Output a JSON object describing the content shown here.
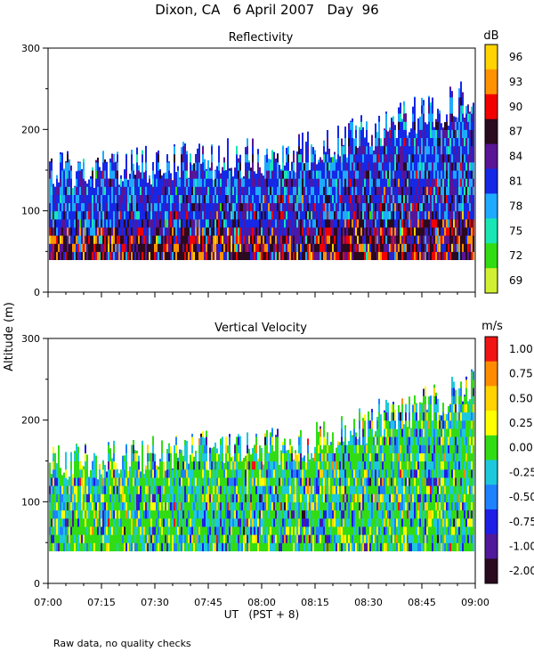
{
  "title": "Dixon, CA   6 April 2007   Day  96",
  "ylabel": "Altitude (m)",
  "xlabel": "UT   (PST + 8)",
  "footnote": "Raw data, no quality checks",
  "chart_data": [
    {
      "type": "heatmap",
      "title": "Reflectivity",
      "colorbar_unit": "dB",
      "colorbar_ticks": [
        "96",
        "93",
        "90",
        "87",
        "84",
        "81",
        "78",
        "75",
        "72",
        "69"
      ],
      "colorbar_colors": [
        "#ffd400",
        "#ff9200",
        "#f20000",
        "#2a0a1e",
        "#5a1496",
        "#1428e6",
        "#1eaaff",
        "#19e6b4",
        "#32dc14",
        "#d2f032"
      ],
      "x_ticks": [
        "07:00",
        "07:15",
        "07:30",
        "07:45",
        "08:00",
        "08:15",
        "08:30",
        "08:45",
        "09:00"
      ],
      "y_ticks": [
        "0",
        "100",
        "200",
        "300"
      ],
      "ylim": [
        0,
        300
      ],
      "xlim": [
        "07:00",
        "09:00"
      ]
    },
    {
      "type": "heatmap",
      "title": "Vertical Velocity",
      "colorbar_unit": "m/s",
      "colorbar_ticks": [
        "1.00",
        "0.75",
        "0.50",
        "0.25",
        "0.00",
        "-0.25",
        "-0.50",
        "-0.75",
        "-1.00",
        "-2.00"
      ],
      "colorbar_colors": [
        "#f01414",
        "#ff8c00",
        "#ffd200",
        "#ffff00",
        "#32dc14",
        "#1ec8dc",
        "#1e82ff",
        "#1e1ee6",
        "#50189b",
        "#2a0a1e"
      ],
      "x_ticks": [
        "07:00",
        "07:15",
        "07:30",
        "07:45",
        "08:00",
        "08:15",
        "08:30",
        "08:45",
        "09:00"
      ],
      "y_ticks": [
        "0",
        "100",
        "200",
        "300"
      ],
      "ylim": [
        0,
        300
      ],
      "xlim": [
        "07:00",
        "09:00"
      ]
    }
  ]
}
